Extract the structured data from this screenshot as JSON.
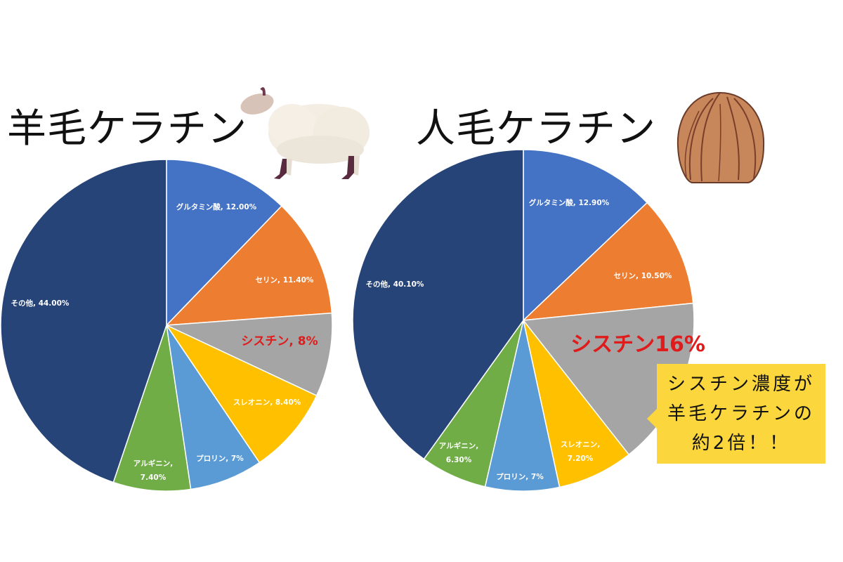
{
  "titles": {
    "left": "羊毛ケラチン",
    "right": "人毛ケラチン"
  },
  "callout": {
    "lines": [
      "シスチン濃度が",
      "羊毛ケラチンの",
      "約2倍！！"
    ],
    "background": "#fbd63c"
  },
  "icons": {
    "left": "sheep-illustration",
    "right": "hair-bob-illustration"
  },
  "colors": {
    "その他": "#264478",
    "グルタミン酸": "#4472c4",
    "セリン": "#ed7d31",
    "シスチン": "#a5a5a5",
    "スレオニン": "#ffc000",
    "プロリン": "#5b9bd5",
    "アルギニン": "#70ad47",
    "highlight": "#e01b1b"
  },
  "chart_data": [
    {
      "type": "pie",
      "title": "羊毛ケラチン",
      "categories": [
        "グルタミン酸",
        "セリン",
        "シスチン",
        "スレオニン",
        "プロリン",
        "アルギニン",
        "その他"
      ],
      "values": [
        12.0,
        11.4,
        8.0,
        8.4,
        7.0,
        7.4,
        44.0
      ],
      "labels": [
        "グルタミン酸, 12.00%",
        "セリン, 11.40%",
        "シスチン, 8%",
        "スレオニン, 8.40%",
        "プロリン, 7%",
        "アルギニン, 7.40%",
        "その他, 44.00%"
      ],
      "highlight": "シスチン"
    },
    {
      "type": "pie",
      "title": "人毛ケラチン",
      "categories": [
        "グルタミン酸",
        "セリン",
        "シスチン",
        "スレオニン",
        "プロリン",
        "アルギニン",
        "その他"
      ],
      "values": [
        12.9,
        10.5,
        16.0,
        7.2,
        7.0,
        6.3,
        40.1
      ],
      "labels": [
        "グルタミン酸, 12.90%",
        "セリン, 10.50%",
        "シスチン16%",
        "スレオニン, 7.20%",
        "プロリン, 7%",
        "アルギニン, 6.30%",
        "その他, 40.10%"
      ],
      "highlight": "シスチン"
    }
  ]
}
